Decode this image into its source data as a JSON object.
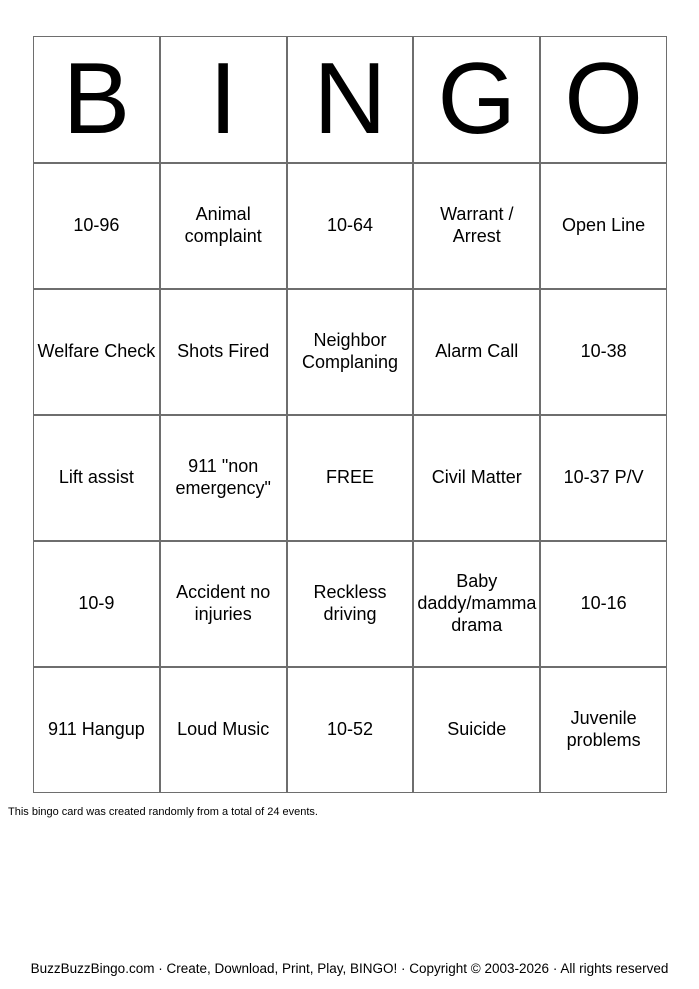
{
  "card": {
    "header_letters": [
      "B",
      "I",
      "N",
      "G",
      "O"
    ],
    "rows": [
      [
        "10-96",
        "Animal complaint",
        "10-64",
        "Warrant / Arrest",
        "Open Line"
      ],
      [
        "Welfare Check",
        "Shots Fired",
        "Neighbor Complaning",
        "Alarm Call",
        "10-38"
      ],
      [
        "Lift assist",
        "911 \"non emergency\"",
        "FREE",
        "Civil Matter",
        "10-37 P/V"
      ],
      [
        "10-9",
        "Accident no injuries",
        "Reckless driving",
        "Baby daddy/mamma drama",
        "10-16"
      ],
      [
        "911 Hangup",
        "Loud Music",
        "10-52",
        "Suicide",
        "Juvenile problems"
      ]
    ]
  },
  "note_text": "This bingo card was created randomly from a total of 24 events.",
  "footer_text": "BuzzBuzzBingo.com · Create, Download, Print, Play, BINGO! · Copyright © 2003-2026 · All rights reserved",
  "colors": {
    "grid_line": "#6e6e6e",
    "text": "#000000",
    "background": "#ffffff"
  }
}
